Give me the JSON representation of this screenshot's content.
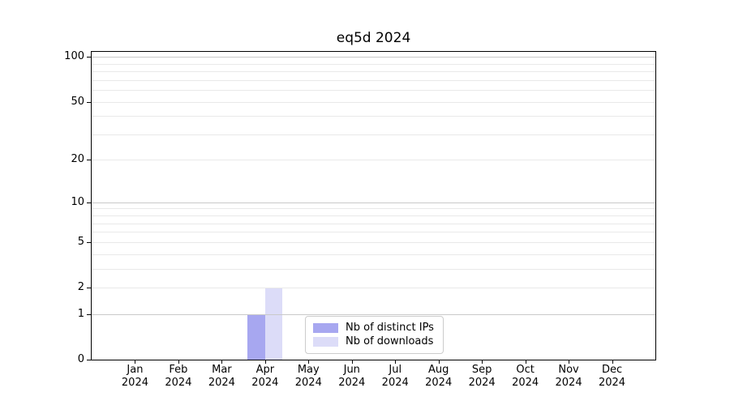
{
  "figure": {
    "title": "eq5d 2024"
  },
  "chart_data": {
    "type": "bar",
    "title": "eq5d 2024",
    "categories": [
      "Jan 2024",
      "Feb 2024",
      "Mar 2024",
      "Apr 2024",
      "May 2024",
      "Jun 2024",
      "Jul 2024",
      "Aug 2024",
      "Sep 2024",
      "Oct 2024",
      "Nov 2024",
      "Dec 2024"
    ],
    "series": [
      {
        "name": "Nb of distinct IPs",
        "color": "#a7a7f0",
        "values": [
          0,
          0,
          0,
          1,
          0,
          0,
          0,
          0,
          0,
          0,
          0,
          0
        ]
      },
      {
        "name": "Nb of downloads",
        "color": "#dcdcf8",
        "values": [
          0,
          0,
          0,
          2,
          0,
          0,
          0,
          0,
          0,
          0,
          0,
          0
        ]
      }
    ],
    "xlabel": "",
    "ylabel": "",
    "y_scale": "log1p",
    "ylim": [
      0,
      108
    ],
    "y_ticks": [
      0,
      1,
      2,
      5,
      10,
      20,
      50,
      100
    ],
    "y_major_gridlines": [
      1,
      10,
      100
    ],
    "y_minor_gridlines": [
      2,
      3,
      4,
      5,
      6,
      7,
      8,
      9,
      20,
      30,
      40,
      50,
      60,
      70,
      80,
      90
    ],
    "grid": true,
    "legend_position": "lower center",
    "colors": {
      "axis": "#000000",
      "text": "#000000",
      "major_grid": "#c9c9c9",
      "minor_grid": "#e9e9e9",
      "legend_border": "#cccccc"
    }
  }
}
